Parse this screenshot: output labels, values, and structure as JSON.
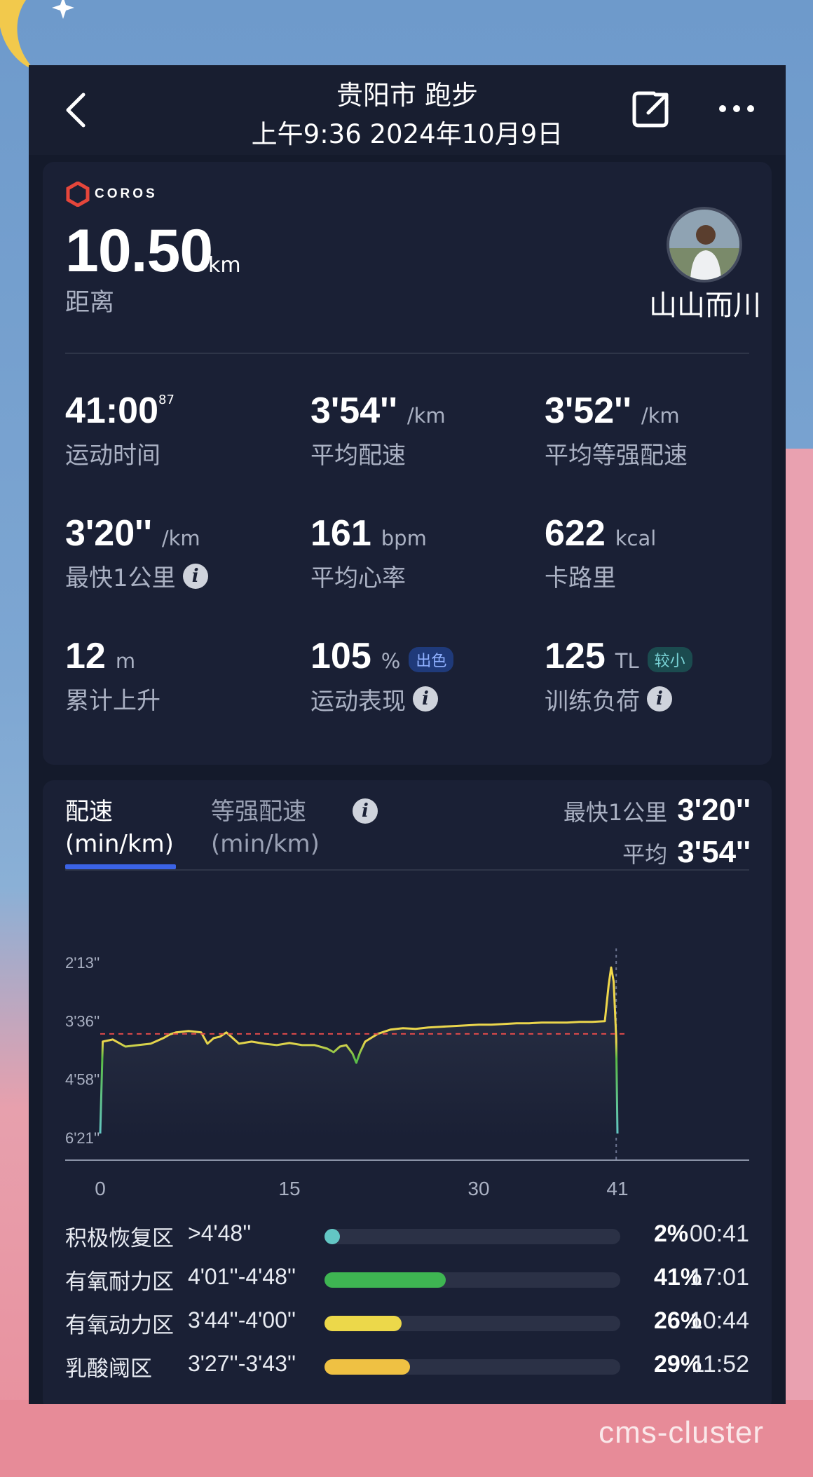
{
  "header": {
    "title": "贵阳市 跑步",
    "subtitle": "上午9:36 2024年10月9日"
  },
  "summary": {
    "brand": "COROS",
    "distance_value": "10.50",
    "distance_unit": "km",
    "distance_label": "距离",
    "username": "山山而川"
  },
  "stats": [
    {
      "value": "41:00",
      "sup": "87",
      "unit": "",
      "label": "运动时间"
    },
    {
      "value": "3'54''",
      "unit": "/km",
      "label": "平均配速"
    },
    {
      "value": "3'52''",
      "unit": "/km",
      "label": "平均等强配速"
    },
    {
      "value": "3'20''",
      "unit": "/km",
      "label": "最快1公里",
      "info": "i"
    },
    {
      "value": "161",
      "unit": "bpm",
      "label": "平均心率"
    },
    {
      "value": "622",
      "unit": "kcal",
      "label": "卡路里"
    },
    {
      "value": "12",
      "unit": "m",
      "label": "累计上升"
    },
    {
      "value": "105",
      "unit": "%",
      "label": "运动表现",
      "badge": "出色",
      "info": "i"
    },
    {
      "value": "125",
      "unit": "TL",
      "label": "训练负荷",
      "badge": "较小",
      "info": "i"
    }
  ],
  "pace": {
    "tab_active_line1": "配速",
    "tab_active_line2": "(min/km)",
    "tab_other_line1": "等强配速",
    "tab_other_line2": "(min/km)",
    "tab_info": "i",
    "fastest_label": "最快1公里",
    "fastest_value": "3'20''",
    "avg_label": "平均",
    "avg_value": "3'54''"
  },
  "chart_data": {
    "type": "line",
    "title": "",
    "xlabel": "",
    "ylabel": "",
    "x_ticks": [
      "0",
      "15",
      "30",
      "41"
    ],
    "y_ticks": [
      "2'13''",
      "3'36''",
      "4'58''",
      "6'21''"
    ],
    "xlim": [
      0,
      41
    ],
    "ylim_seconds": [
      133,
      381
    ],
    "y_inverted": true,
    "average_line_seconds": 234,
    "series": [
      {
        "x": [
          0,
          0.2,
          1,
          2,
          3,
          4,
          5,
          5.5,
          6,
          7,
          8,
          8.5,
          9,
          9.5,
          10,
          11,
          12,
          13,
          14,
          15,
          16,
          17,
          18,
          18.5,
          19,
          19.5,
          20,
          20.3,
          20.6,
          21,
          22,
          23,
          24,
          25,
          26,
          27,
          28,
          29,
          30,
          31,
          32,
          33,
          34,
          35,
          36,
          37,
          38,
          39,
          40,
          40.3,
          40.5,
          40.7,
          40.9,
          41
        ],
        "y": [
          375,
          245,
          242,
          252,
          250,
          248,
          240,
          235,
          232,
          230,
          232,
          248,
          240,
          238,
          232,
          248,
          245,
          248,
          250,
          247,
          250,
          250,
          255,
          260,
          252,
          250,
          262,
          275,
          260,
          245,
          234,
          228,
          226,
          227,
          225,
          224,
          223,
          222,
          221,
          221,
          220,
          219,
          219,
          218,
          218,
          218,
          217,
          217,
          216,
          165,
          140,
          160,
          240,
          375
        ]
      }
    ]
  },
  "zones": [
    {
      "name": "积极恢复区",
      "range": ">4'48''",
      "pct": "2%",
      "pct_value": 0.02,
      "time": "00:41",
      "color": "#63c6c4"
    },
    {
      "name": "有氧耐力区",
      "range": "4'01''-4'48''",
      "pct": "41%",
      "pct_value": 0.41,
      "time": "17:01",
      "color": "#3eb552"
    },
    {
      "name": "有氧动力区",
      "range": "3'44''-4'00''",
      "pct": "26%",
      "pct_value": 0.26,
      "time": "10:44",
      "color": "#ecd84a"
    },
    {
      "name": "乳酸阈区",
      "range": "3'27''-3'43''",
      "pct": "29%",
      "pct_value": 0.29,
      "time": "11:52",
      "color": "#efc143"
    }
  ],
  "watermark": "cms-cluster"
}
